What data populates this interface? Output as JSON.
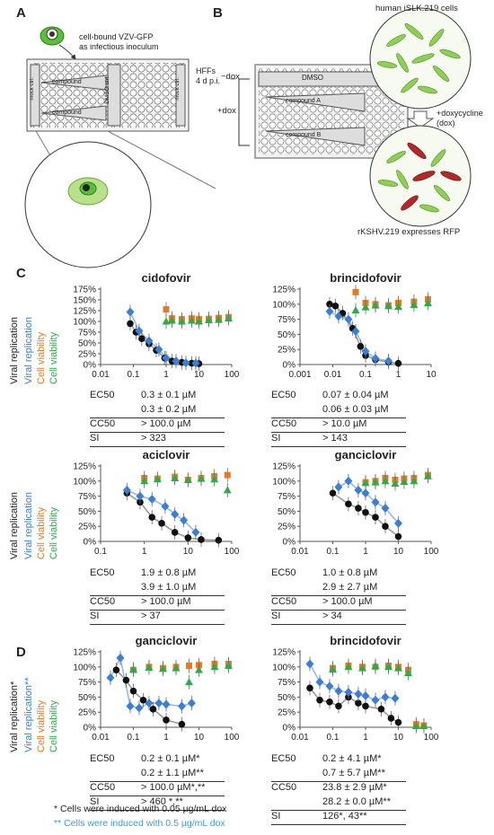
{
  "panels": {
    "A": {
      "letter": "A",
      "inoculum_label": [
        "cell-bound VZV-GFP",
        "as infectious inoculum"
      ],
      "cells_label": [
        "HFFs",
        "4 d p.i."
      ],
      "mock_label": "mock ctrl.",
      "dmso_label": "DMSO ctrl.",
      "compound_label": "compound"
    },
    "B": {
      "letter": "B",
      "top_label": "human iSLK.219 cells",
      "minus_dox": "−dox",
      "plus_dox": "+dox",
      "dmso": "DMSO",
      "compound_a": "compound A",
      "compound_b": "compound B",
      "induce": [
        "+doxycycline",
        "(dox)"
      ],
      "bottom_label": "rKSHV.219 expresses RFP"
    },
    "C": {
      "letter": "C"
    },
    "D": {
      "letter": "D"
    }
  },
  "ylabels": {
    "viral": "Viral replication",
    "cell": "Cell viability",
    "viral_star": "Viral replication*",
    "viral_dstar": "Viral replication**"
  },
  "colors": {
    "black": "#111111",
    "blue": "#3a7fd5",
    "orange": "#e07b2a",
    "green": "#2faa4a",
    "yellow": "#e8c21a"
  },
  "stats": {
    "cidofovir": [
      {
        "k": "EC50",
        "v": "0.3 ± 0.1 µM"
      },
      {
        "k": "",
        "v": "0.3 ± 0.2 µM"
      },
      {
        "k": "CC50",
        "v": "> 100.0 µM"
      },
      {
        "k": "SI",
        "v": "> 323"
      }
    ],
    "brincidofovir": [
      {
        "k": "EC50",
        "v": "0.07 ± 0.04 µM"
      },
      {
        "k": "",
        "v": "0.06 ± 0.03 µM"
      },
      {
        "k": "CC50",
        "v": "> 10.0 µM"
      },
      {
        "k": "SI",
        "v": "> 143"
      }
    ],
    "aciclovir": [
      {
        "k": "EC50",
        "v": "1.9 ± 0.8 µM"
      },
      {
        "k": "",
        "v": "3.9 ± 1.0 µM"
      },
      {
        "k": "CC50",
        "v": "> 100.0 µM"
      },
      {
        "k": "SI",
        "v": "> 37"
      }
    ],
    "ganciclovir": [
      {
        "k": "EC50",
        "v": "1.0 ± 0.8 µM"
      },
      {
        "k": "",
        "v": "2.9 ± 2.7 µM"
      },
      {
        "k": "CC50",
        "v": "> 100.0 µM"
      },
      {
        "k": "SI",
        "v": "> 34"
      }
    ],
    "d_ganciclovir": [
      {
        "k": "EC50",
        "v": "0.2 ± 0.1 µM*"
      },
      {
        "k": "",
        "v": "0.2 ± 1.1 µM**"
      },
      {
        "k": "CC50",
        "v": "> 100.0 µM*,**"
      },
      {
        "k": "SI",
        "v": "> 460 *,**"
      }
    ],
    "d_brincidofovir": [
      {
        "k": "EC50",
        "v": "0.2 ± 4.1 µM*"
      },
      {
        "k": "",
        "v": "0.7 ± 5.7 µM**"
      },
      {
        "k": "CC50",
        "v": "23.8 ± 2.9 µM*"
      },
      {
        "k": "",
        "v": "28.2 ± 0.0 µM**"
      },
      {
        "k": "SI",
        "v": "126*, 43**"
      }
    ]
  },
  "footnotes": {
    "star": "*  Cells were induced with 0.05 µg/mL dox",
    "dstar": "** Cells were induced with 0.5 µg/mL dox"
  },
  "chart_data": [
    {
      "type": "scatter",
      "title": "cidofovir",
      "log_x": true,
      "xlim": [
        0.01,
        100
      ],
      "ylim": [
        0,
        175
      ],
      "xticks": [
        "0.01",
        "0.1",
        "1",
        "10",
        "100"
      ],
      "yticks": [
        "0%",
        "25%",
        "50%",
        "75%",
        "100%",
        "125%",
        "150%",
        "175%"
      ],
      "series": [
        {
          "color": "black",
          "points": [
            [
              0.08,
              95
            ],
            [
              0.12,
              75
            ],
            [
              0.18,
              60
            ],
            [
              0.3,
              48
            ],
            [
              0.5,
              33
            ],
            [
              0.9,
              15
            ],
            [
              1.5,
              8
            ],
            [
              3,
              5
            ],
            [
              6,
              3
            ],
            [
              10,
              2
            ]
          ]
        },
        {
          "color": "blue",
          "points": [
            [
              0.08,
              122
            ],
            [
              0.15,
              78
            ],
            [
              0.3,
              55
            ],
            [
              0.6,
              35
            ],
            [
              1.0,
              15
            ],
            [
              2,
              8
            ],
            [
              4,
              4
            ],
            [
              8,
              3
            ]
          ]
        },
        {
          "color": "orange",
          "points": [
            [
              1,
              128
            ],
            [
              1.5,
              107
            ],
            [
              3,
              105
            ],
            [
              6,
              107
            ],
            [
              10,
              105
            ],
            [
              20,
              106
            ],
            [
              40,
              108
            ],
            [
              80,
              110
            ]
          ]
        },
        {
          "color": "green",
          "points": [
            [
              1,
              100
            ],
            [
              1.5,
              102
            ],
            [
              3,
              100
            ],
            [
              6,
              102
            ],
            [
              10,
              100
            ],
            [
              20,
              103
            ],
            [
              40,
              104
            ],
            [
              80,
              107
            ]
          ]
        }
      ]
    },
    {
      "type": "scatter",
      "title": "brincidofovir",
      "log_x": true,
      "xlim": [
        0.001,
        10
      ],
      "ylim": [
        0,
        125
      ],
      "xticks": [
        "0.001",
        "0.01",
        "0.1",
        "1",
        "10"
      ],
      "yticks": [
        "0%",
        "25%",
        "50%",
        "75%",
        "100%",
        "125%"
      ],
      "series": [
        {
          "color": "black",
          "points": [
            [
              0.008,
              100
            ],
            [
              0.012,
              97
            ],
            [
              0.02,
              85
            ],
            [
              0.04,
              60
            ],
            [
              0.07,
              30
            ],
            [
              0.1,
              15
            ],
            [
              0.2,
              8
            ],
            [
              0.5,
              4
            ],
            [
              1,
              2
            ]
          ]
        },
        {
          "color": "blue",
          "points": [
            [
              0.008,
              88
            ],
            [
              0.015,
              80
            ],
            [
              0.03,
              75
            ],
            [
              0.05,
              55
            ],
            [
              0.1,
              22
            ],
            [
              0.2,
              10
            ],
            [
              0.5,
              6
            ]
          ]
        },
        {
          "color": "orange",
          "points": [
            [
              0.05,
              120
            ],
            [
              0.1,
              102
            ],
            [
              0.2,
              100
            ],
            [
              0.5,
              98
            ],
            [
              1,
              102
            ],
            [
              3,
              104
            ],
            [
              8,
              108
            ]
          ]
        },
        {
          "color": "green",
          "points": [
            [
              0.05,
              90
            ],
            [
              0.1,
              95
            ],
            [
              0.2,
              98
            ],
            [
              0.5,
              97
            ],
            [
              1,
              96
            ],
            [
              3,
              99
            ],
            [
              8,
              102
            ]
          ]
        }
      ]
    },
    {
      "type": "scatter",
      "title": "aciclovir",
      "log_x": true,
      "xlim": [
        0.1,
        100
      ],
      "ylim": [
        0,
        125
      ],
      "xticks": [
        "0.1",
        "1",
        "10",
        "100"
      ],
      "yticks": [
        "0%",
        "25%",
        "50%",
        "75%",
        "100%",
        "125%"
      ],
      "series": [
        {
          "color": "black",
          "points": [
            [
              0.4,
              80
            ],
            [
              0.8,
              65
            ],
            [
              1.5,
              40
            ],
            [
              2.5,
              30
            ],
            [
              5,
              15
            ],
            [
              10,
              6
            ],
            [
              20,
              3
            ],
            [
              50,
              2
            ]
          ]
        },
        {
          "color": "blue",
          "points": [
            [
              0.4,
              85
            ],
            [
              0.8,
              75
            ],
            [
              1.5,
              70
            ],
            [
              3,
              58
            ],
            [
              5,
              45
            ],
            [
              8,
              35
            ],
            [
              15,
              15
            ]
          ]
        },
        {
          "color": "orange",
          "points": [
            [
              1,
              105
            ],
            [
              2,
              104
            ],
            [
              5,
              107
            ],
            [
              10,
              102
            ],
            [
              20,
              105
            ],
            [
              40,
              108
            ],
            [
              80,
              110
            ]
          ]
        },
        {
          "color": "green",
          "points": [
            [
              1,
              100
            ],
            [
              2,
              103
            ],
            [
              5,
              105
            ],
            [
              10,
              102
            ],
            [
              20,
              104
            ],
            [
              40,
              103
            ],
            [
              80,
              85
            ]
          ]
        }
      ]
    },
    {
      "type": "scatter",
      "title": "ganciclovir",
      "log_x": true,
      "xlim": [
        0.01,
        100
      ],
      "ylim": [
        0,
        125
      ],
      "xticks": [
        "0.01",
        "0.1",
        "1",
        "10",
        "100"
      ],
      "yticks": [
        "0%",
        "25%",
        "50%",
        "75%",
        "100%",
        "125%"
      ],
      "series": [
        {
          "color": "black",
          "points": [
            [
              0.1,
              80
            ],
            [
              0.3,
              62
            ],
            [
              0.6,
              55
            ],
            [
              1,
              48
            ],
            [
              2,
              40
            ],
            [
              4,
              25
            ],
            [
              10,
              8
            ]
          ]
        },
        {
          "color": "blue",
          "points": [
            [
              0.15,
              90
            ],
            [
              0.3,
              100
            ],
            [
              0.6,
              85
            ],
            [
              1,
              80
            ],
            [
              2,
              65
            ],
            [
              4,
              55
            ],
            [
              10,
              30
            ]
          ]
        },
        {
          "color": "orange",
          "points": [
            [
              1,
              98
            ],
            [
              2,
              100
            ],
            [
              4,
              105
            ],
            [
              8,
              102
            ],
            [
              15,
              104
            ],
            [
              30,
              105
            ],
            [
              80,
              110
            ]
          ]
        },
        {
          "color": "green",
          "points": [
            [
              1,
              97
            ],
            [
              2,
              98
            ],
            [
              4,
              100
            ],
            [
              8,
              96
            ],
            [
              15,
              99
            ],
            [
              30,
              100
            ],
            [
              80,
              108
            ]
          ]
        }
      ]
    },
    {
      "type": "scatter",
      "title": "ganciclovir",
      "log_x": true,
      "xlim": [
        0.01,
        100
      ],
      "ylim": [
        0,
        125
      ],
      "xticks": [
        "0.01",
        "0.1",
        "1",
        "10",
        "100"
      ],
      "yticks": [
        "0%",
        "25%",
        "50%",
        "75%",
        "100%",
        "125%"
      ],
      "series": [
        {
          "color": "black",
          "points": [
            [
              0.03,
              95
            ],
            [
              0.06,
              78
            ],
            [
              0.1,
              60
            ],
            [
              0.2,
              45
            ],
            [
              0.4,
              30
            ],
            [
              1,
              12
            ],
            [
              3,
              5
            ]
          ]
        },
        {
          "color": "blue",
          "points": [
            [
              0.02,
              82
            ],
            [
              0.04,
              115
            ],
            [
              0.08,
              35
            ],
            [
              0.15,
              32
            ],
            [
              0.3,
              40
            ],
            [
              0.6,
              40
            ],
            [
              1,
              38
            ],
            [
              3,
              35
            ],
            [
              6,
              40
            ]
          ]
        },
        {
          "color": "orange",
          "points": [
            [
              0.1,
              95
            ],
            [
              0.3,
              100
            ],
            [
              0.8,
              98
            ],
            [
              2,
              100
            ],
            [
              5,
              102
            ],
            [
              10,
              103
            ],
            [
              30,
              105
            ],
            [
              80,
              105
            ]
          ]
        },
        {
          "color": "green",
          "points": [
            [
              0.1,
              96
            ],
            [
              0.3,
              99
            ],
            [
              0.8,
              97
            ],
            [
              2,
              98
            ],
            [
              5,
              75
            ],
            [
              10,
              95
            ],
            [
              30,
              100
            ],
            [
              80,
              102
            ]
          ]
        }
      ]
    },
    {
      "type": "scatter",
      "title": "brincidofovir",
      "log_x": true,
      "xlim": [
        0.01,
        100
      ],
      "ylim": [
        0,
        125
      ],
      "xticks": [
        "0.01",
        "0.1",
        "1",
        "10",
        "100"
      ],
      "yticks": [
        "0%",
        "25%",
        "50%",
        "75%",
        "100%",
        "125%"
      ],
      "series": [
        {
          "color": "black",
          "points": [
            [
              0.02,
              65
            ],
            [
              0.04,
              45
            ],
            [
              0.08,
              42
            ],
            [
              0.15,
              35
            ],
            [
              0.3,
              50
            ],
            [
              0.6,
              40
            ],
            [
              1,
              35
            ],
            [
              3,
              30
            ],
            [
              6,
              15
            ],
            [
              10,
              8
            ]
          ]
        },
        {
          "color": "blue",
          "points": [
            [
              0.02,
              105
            ],
            [
              0.04,
              75
            ],
            [
              0.08,
              68
            ],
            [
              0.15,
              60
            ],
            [
              0.3,
              58
            ],
            [
              0.6,
              55
            ],
            [
              1,
              52
            ],
            [
              2,
              45
            ],
            [
              4,
              50
            ],
            [
              8,
              48
            ]
          ]
        },
        {
          "color": "orange",
          "points": [
            [
              0.1,
              98
            ],
            [
              0.3,
              102
            ],
            [
              0.8,
              100
            ],
            [
              2,
              100
            ],
            [
              5,
              102
            ],
            [
              10,
              100
            ],
            [
              20,
              95
            ],
            [
              35,
              5
            ],
            [
              60,
              3
            ]
          ]
        },
        {
          "color": "green",
          "points": [
            [
              0.1,
              96
            ],
            [
              0.3,
              100
            ],
            [
              0.8,
              98
            ],
            [
              2,
              102
            ],
            [
              5,
              100
            ],
            [
              10,
              98
            ],
            [
              20,
              90
            ],
            [
              35,
              2
            ],
            [
              60,
              2
            ]
          ]
        }
      ]
    }
  ]
}
